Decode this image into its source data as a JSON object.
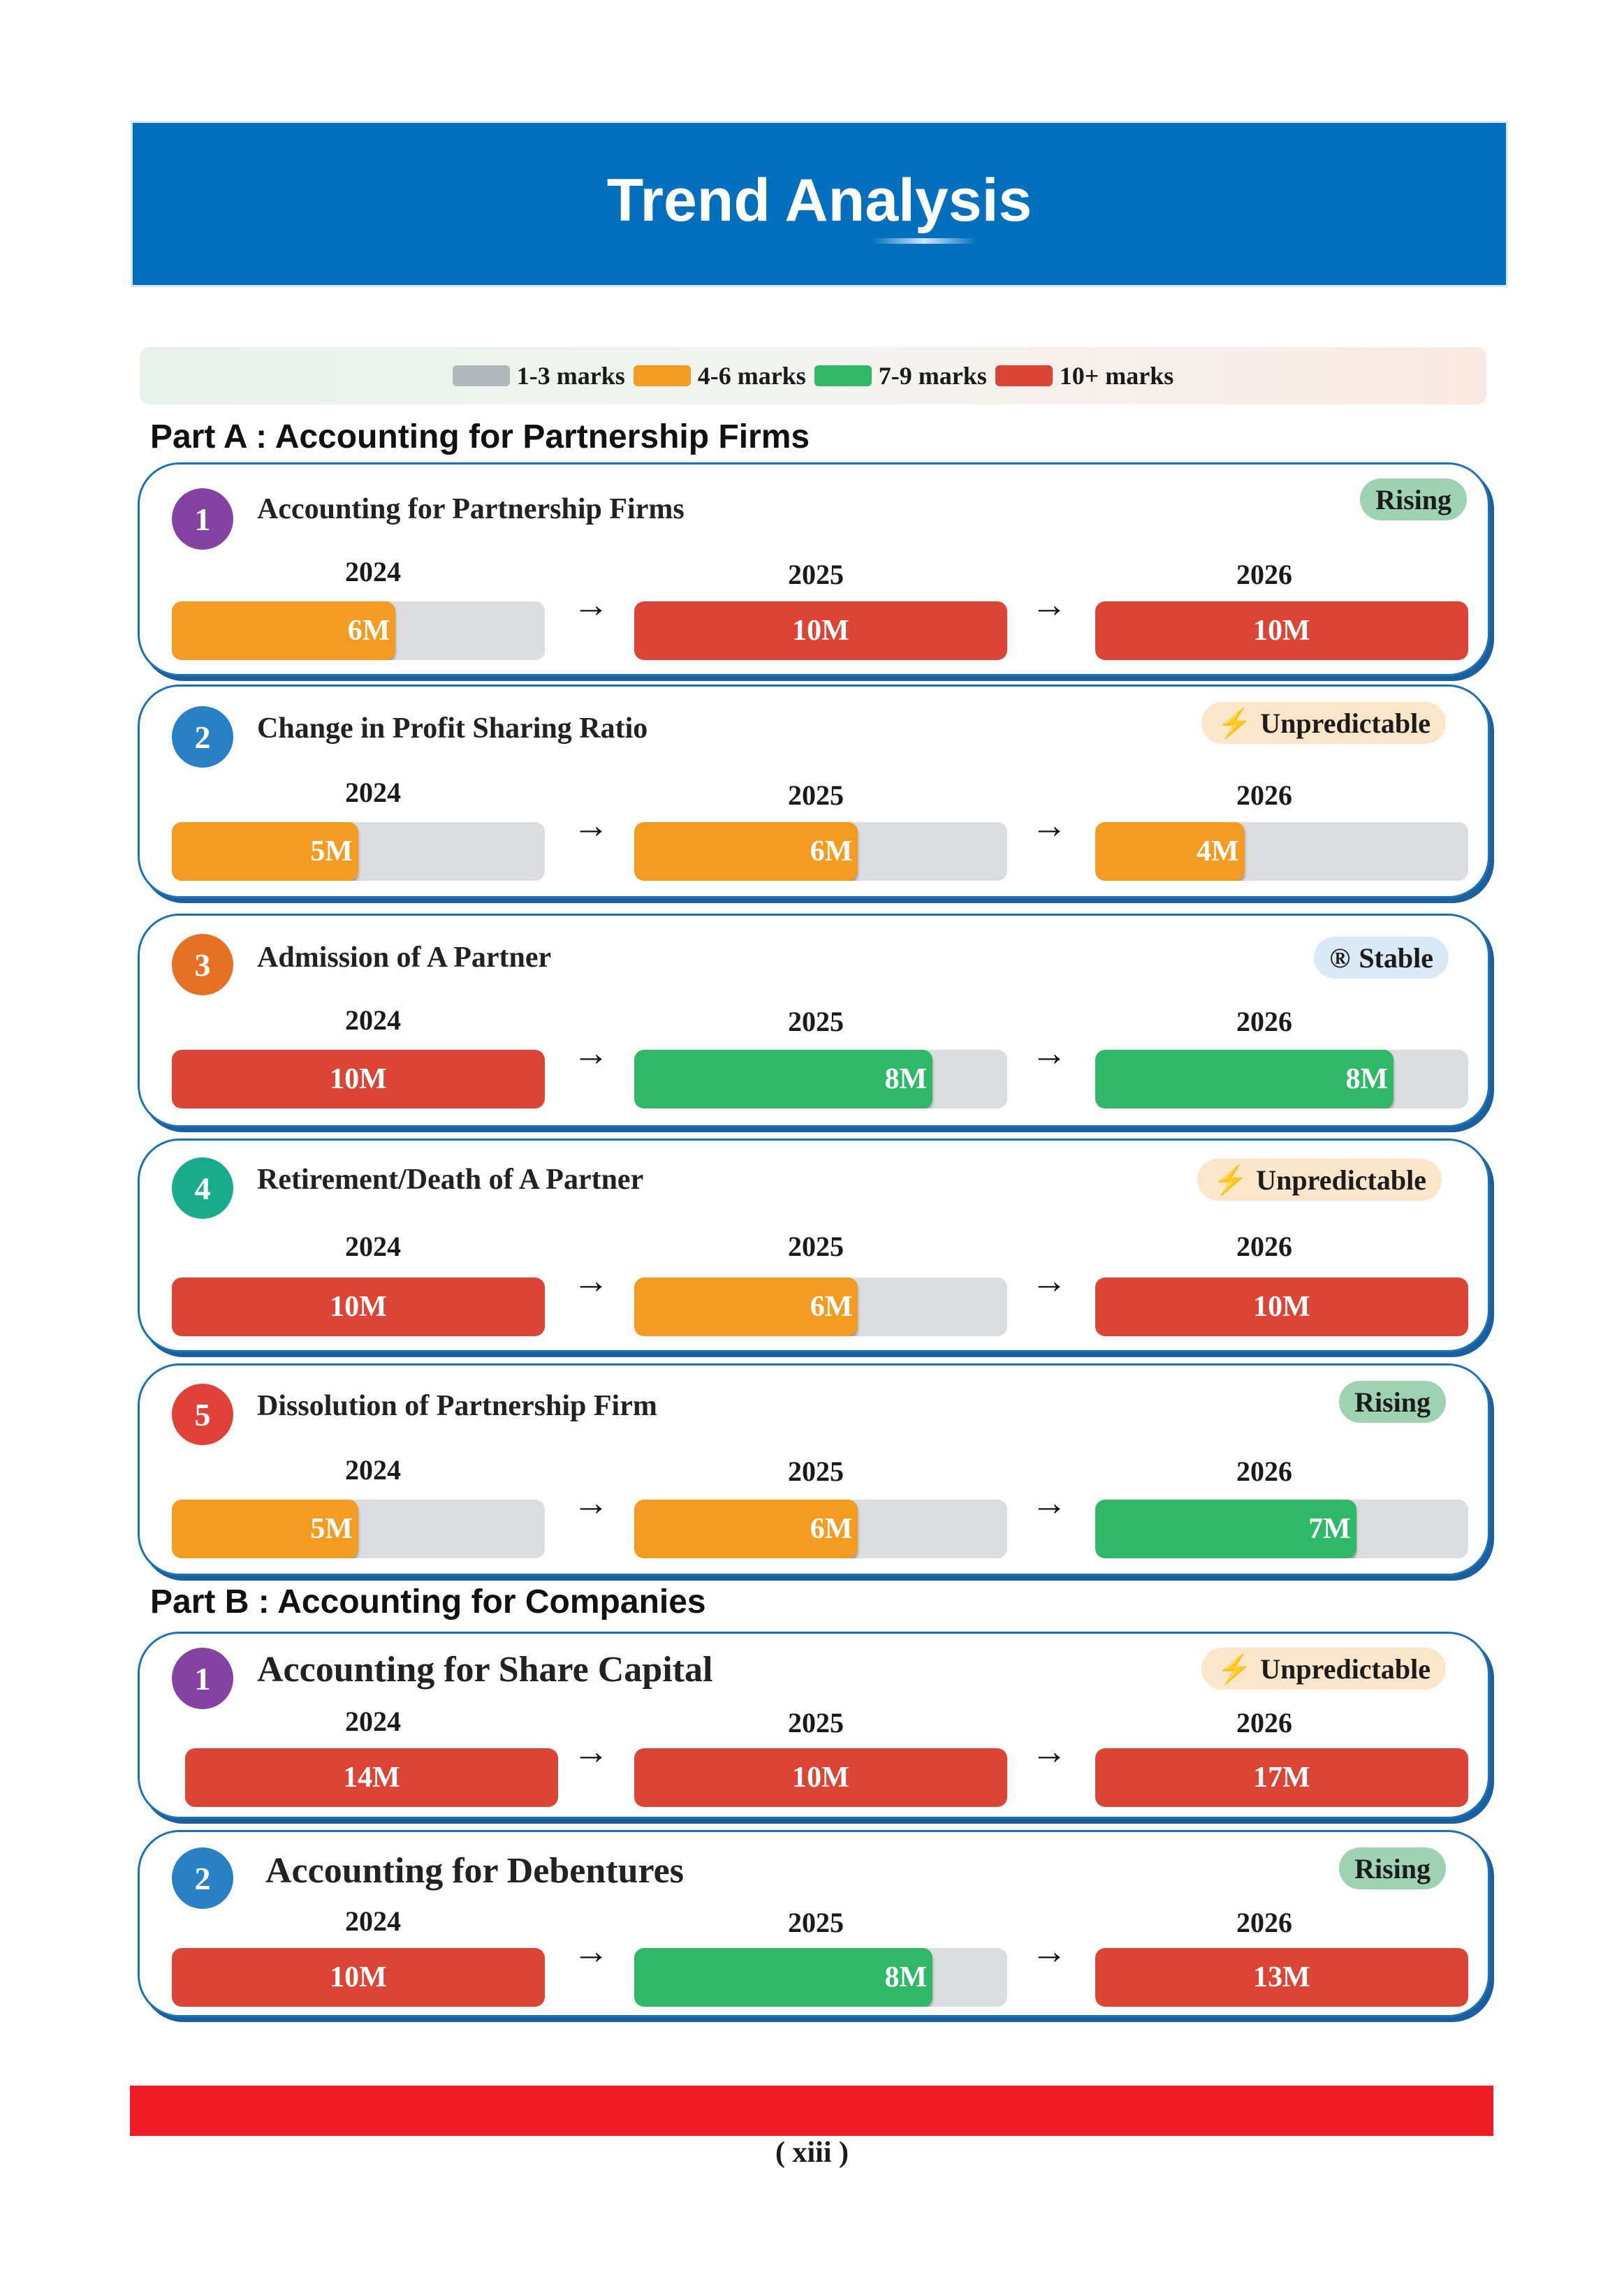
{
  "header": {
    "title": "Trend Analysis"
  },
  "legend": [
    {
      "label": "1-3 marks",
      "color": "#b1b8bd"
    },
    {
      "label": "4-6 marks",
      "color": "#f49c22"
    },
    {
      "label": "7-9 marks",
      "color": "#2fb867"
    },
    {
      "label": "10+ marks",
      "color": "#dc4436"
    }
  ],
  "colors": {
    "orange": "#f49c22",
    "red": "#dc4436",
    "green": "#2fb867",
    "gray": "#dcdde0",
    "banner_blue": "#0270bc",
    "footer_red": "#ee1c25"
  },
  "part_a": {
    "heading": "Part A : Accounting for Partnership Firms",
    "topics": [
      {
        "number": "1",
        "title": "Accounting for Partnership Firms",
        "trend": "Rising",
        "trend_icon": "",
        "circle_color": "#8443a1",
        "years": [
          {
            "year": "2024",
            "label": "6M",
            "marks": 6
          },
          {
            "year": "2025",
            "label": "10M",
            "marks": 10
          },
          {
            "year": "2026",
            "label": "10M",
            "marks": 10
          }
        ]
      },
      {
        "number": "2",
        "title": "Change in Profit Sharing Ratio",
        "trend": "Unpredictable",
        "trend_icon": "lightning-icon",
        "circle_color": "#2980c5",
        "years": [
          {
            "year": "2024",
            "label": "5M",
            "marks": 5
          },
          {
            "year": "2025",
            "label": "6M",
            "marks": 6
          },
          {
            "year": "2026",
            "label": "4M",
            "marks": 4
          }
        ]
      },
      {
        "number": "3",
        "title": "Admission of A Partner",
        "trend": "Stable",
        "trend_icon": "registered-icon",
        "circle_color": "#e57125",
        "years": [
          {
            "year": "2024",
            "label": "10M",
            "marks": 10
          },
          {
            "year": "2025",
            "label": "8M",
            "marks": 8
          },
          {
            "year": "2026",
            "label": "8M",
            "marks": 8
          }
        ]
      },
      {
        "number": "4",
        "title": "Retirement/Death of A Partner",
        "trend": "Unpredictable",
        "trend_icon": "lightning-icon",
        "circle_color": "#1aab8d",
        "years": [
          {
            "year": "2024",
            "label": "10M",
            "marks": 10
          },
          {
            "year": "2025",
            "label": "6M",
            "marks": 6
          },
          {
            "year": "2026",
            "label": "10M",
            "marks": 10
          }
        ]
      },
      {
        "number": "5",
        "title": "Dissolution of Partnership Firm",
        "trend": "Rising",
        "trend_icon": "",
        "circle_color": "#e0423a",
        "years": [
          {
            "year": "2024",
            "label": "5M",
            "marks": 5
          },
          {
            "year": "2025",
            "label": "6M",
            "marks": 6
          },
          {
            "year": "2026",
            "label": "7M",
            "marks": 7
          }
        ]
      }
    ]
  },
  "part_b": {
    "heading": "Part B : Accounting for Companies",
    "topics": [
      {
        "number": "1",
        "title": "Accounting for Share Capital",
        "trend": "Unpredictable",
        "trend_icon": "lightning-icon",
        "circle_color": "#8443a1",
        "years": [
          {
            "year": "2024",
            "label": "14M",
            "marks": 14
          },
          {
            "year": "2025",
            "label": "10M",
            "marks": 10
          },
          {
            "year": "2026",
            "label": "17M",
            "marks": 17
          }
        ]
      },
      {
        "number": "2",
        "title": "Accounting for Debentures",
        "trend": "Rising",
        "trend_icon": "",
        "circle_color": "#2980c5",
        "years": [
          {
            "year": "2024",
            "label": "10M",
            "marks": 10
          },
          {
            "year": "2025",
            "label": "8M",
            "marks": 8
          },
          {
            "year": "2026",
            "label": "13M",
            "marks": 13
          }
        ]
      }
    ]
  },
  "footer": {
    "page_number": "( xiii )"
  }
}
